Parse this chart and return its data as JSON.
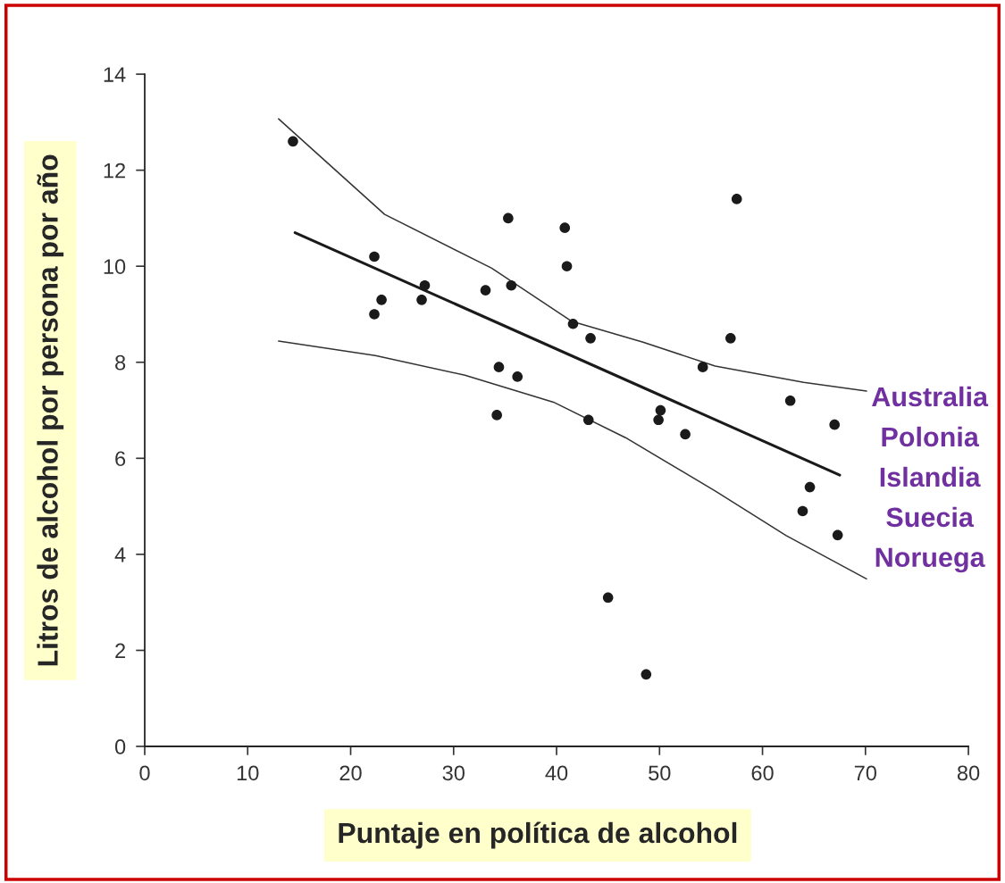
{
  "chart_data": {
    "type": "scatter",
    "xlabel": "Puntaje en política de alcohol",
    "ylabel": "Litros de alcohol por persona por año",
    "xlim": [
      0,
      80
    ],
    "ylim": [
      0,
      14
    ],
    "xticks": [
      0,
      10,
      20,
      30,
      40,
      50,
      60,
      70,
      80
    ],
    "yticks": [
      0,
      2,
      4,
      6,
      8,
      10,
      12,
      14
    ],
    "grid": false,
    "legend": false,
    "series": [
      {
        "color": "#1a1a1a",
        "marker": "circle",
        "x": [
          14.4,
          22.3,
          22.3,
          23.0,
          27.2,
          26.9,
          33.1,
          35.3,
          35.6,
          34.4,
          36.2,
          34.2,
          40.8,
          41.0,
          41.6,
          43.3,
          43.1,
          45.0,
          48.7,
          49.9,
          50.1,
          52.5,
          54.2,
          56.9,
          57.5,
          62.7,
          63.9,
          64.6,
          67.0,
          67.3
        ],
        "values": [
          12.6,
          10.2,
          9.0,
          9.3,
          9.6,
          9.3,
          9.5,
          11.0,
          9.6,
          7.9,
          7.7,
          6.9,
          10.8,
          10.0,
          8.8,
          8.5,
          6.8,
          3.1,
          1.5,
          6.8,
          7.0,
          6.5,
          7.9,
          8.5,
          11.4,
          7.2,
          4.9,
          5.4,
          6.7,
          4.4
        ]
      },
      {
        "type": "line",
        "color": "#1a1a1a",
        "marker": "none",
        "line_style": "solid",
        "x": [
          14.6,
          67.5
        ],
        "values": [
          10.7,
          5.65
        ]
      },
      {
        "type": "line",
        "color": "#333333",
        "marker": "none",
        "line_style": "solid",
        "x": [
          13.0,
          23.3,
          33.7,
          41.5,
          48.4,
          55.4,
          64.0,
          70.1
        ],
        "values": [
          13.07,
          11.08,
          9.96,
          8.85,
          8.42,
          7.92,
          7.58,
          7.4
        ]
      },
      {
        "type": "line",
        "color": "#333333",
        "marker": "none",
        "line_style": "solid",
        "x": [
          13.0,
          22.4,
          31.1,
          39.7,
          46.7,
          55.4,
          62.3,
          70.1
        ],
        "values": [
          8.44,
          8.14,
          7.73,
          7.17,
          6.43,
          5.32,
          4.39,
          3.49
        ]
      }
    ],
    "annotations": [
      "Australia",
      "Polonia",
      "Islandia",
      "Suecia",
      "Noruega"
    ]
  }
}
